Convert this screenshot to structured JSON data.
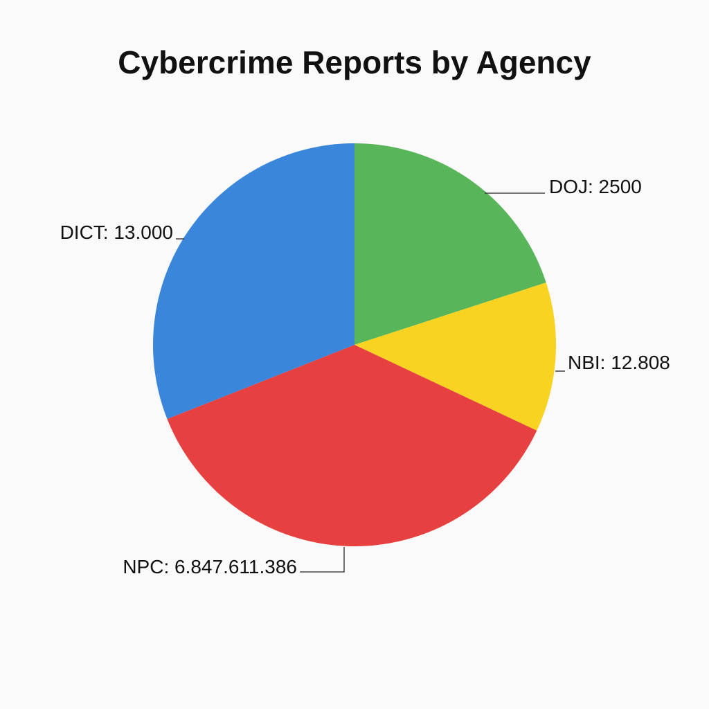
{
  "chart_data": {
    "type": "pie",
    "title": "Cybercrime Reports by Agency",
    "slices": [
      {
        "name": "DOJ",
        "label": "DOJ: 2500",
        "color": "#58b55a",
        "share": 0.2
      },
      {
        "name": "NBI",
        "label": "NBI: 12.808",
        "color": "#f8d321",
        "share": 0.12
      },
      {
        "name": "NPC",
        "label": "NPC: 6.847.611.386",
        "color": "#e64040",
        "share": 0.37
      },
      {
        "name": "DICT",
        "label": "DICT: 13.000",
        "color": "#3a86da",
        "share": 0.31
      }
    ],
    "start_angle": "top",
    "direction": "clockwise",
    "legend": "none"
  }
}
